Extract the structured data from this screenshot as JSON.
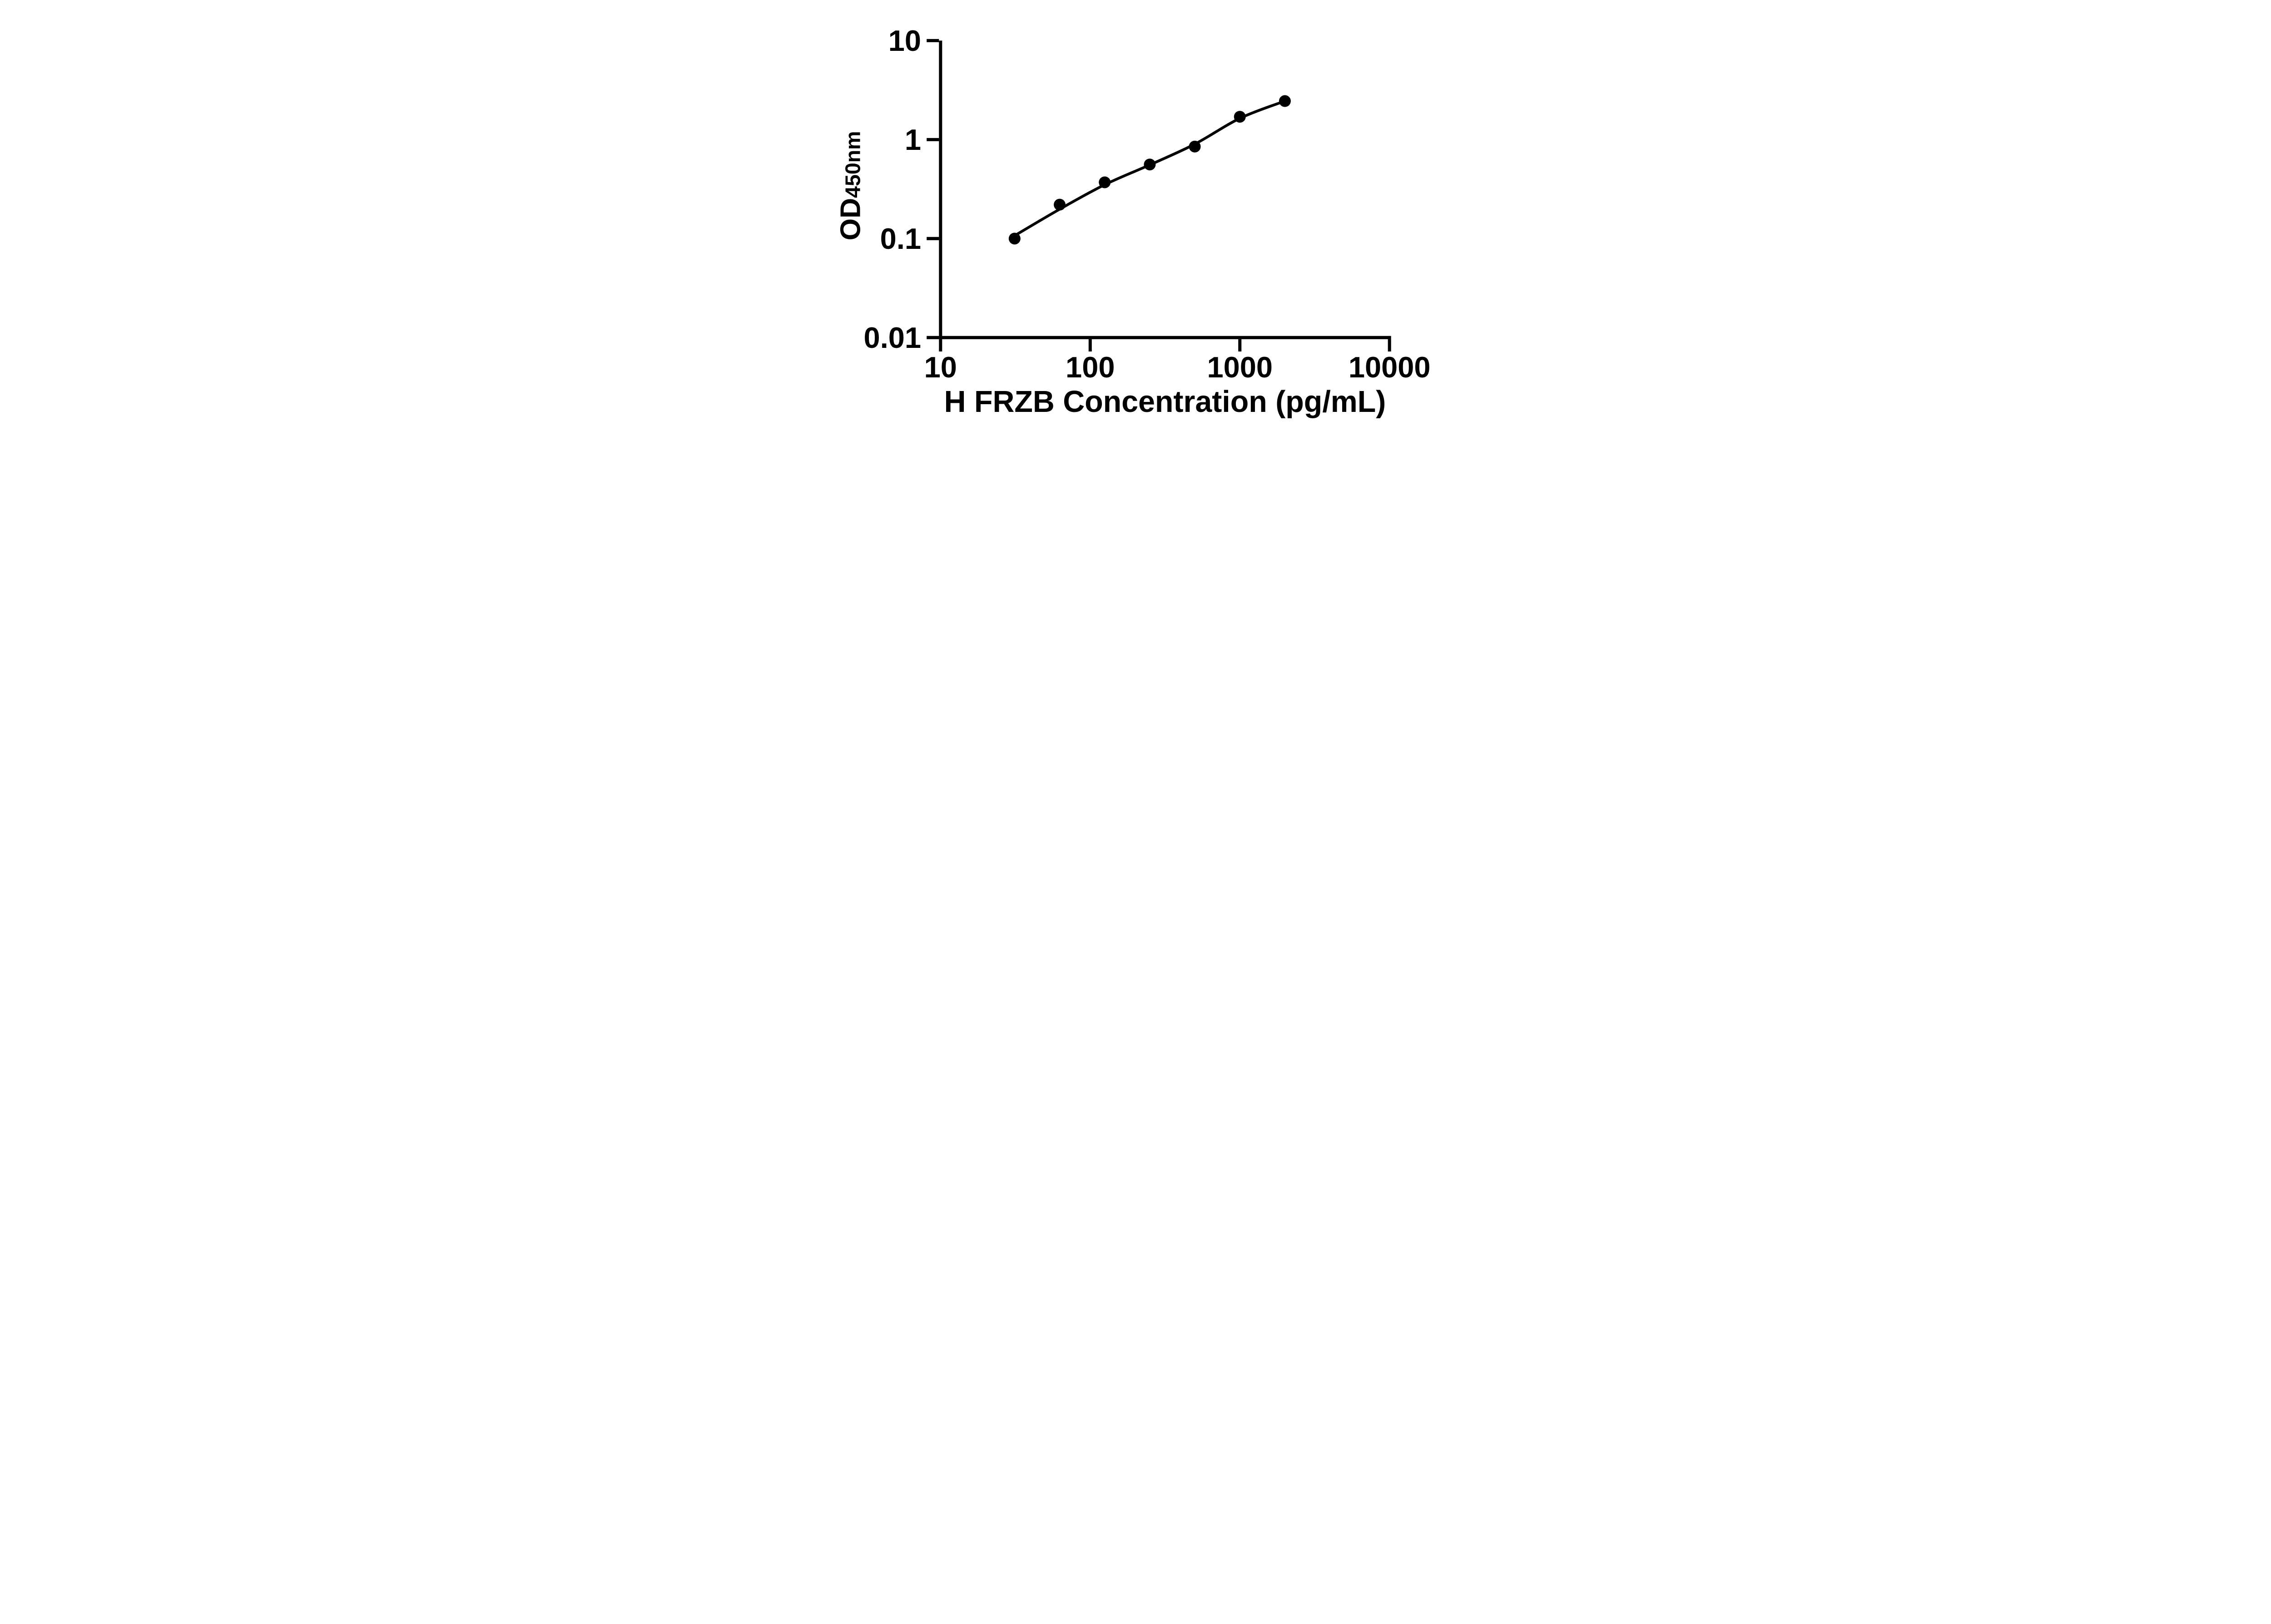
{
  "figure": {
    "background_color": "#ffffff",
    "ink_color": "#000000"
  },
  "chart_data": {
    "type": "scatter",
    "title": "",
    "xlabel": "H FRZB Concentration (pg/mL)",
    "ylabel_main": "OD",
    "ylabel_sub": "450nm",
    "x_scale": "log10",
    "y_scale": "log10",
    "xlim": [
      10,
      10000
    ],
    "ylim": [
      0.01,
      10
    ],
    "grid": false,
    "legend_position": "none",
    "x_ticks": [
      {
        "value": 10,
        "label": "10"
      },
      {
        "value": 100,
        "label": "100"
      },
      {
        "value": 1000,
        "label": "1000"
      },
      {
        "value": 10000,
        "label": "10000"
      }
    ],
    "y_ticks": [
      {
        "value": 10,
        "label": "10"
      },
      {
        "value": 1,
        "label": "1"
      },
      {
        "value": 0.1,
        "label": "0.1"
      },
      {
        "value": 0.01,
        "label": "0.01"
      }
    ],
    "series": [
      {
        "name": "standard-curve-points",
        "marker": "filled-circle",
        "line": "none",
        "x": [
          31.25,
          62.5,
          125,
          250,
          500,
          1000,
          2000
        ],
        "y": [
          0.1,
          0.22,
          0.37,
          0.56,
          0.85,
          1.7,
          2.45
        ]
      },
      {
        "name": "fitted-trend-line",
        "marker": "none",
        "line": "solid",
        "x": [
          31.25,
          62.5,
          125,
          250,
          500,
          1000,
          2000
        ],
        "y": [
          0.107,
          0.198,
          0.35,
          0.555,
          0.9,
          1.64,
          2.45
        ]
      }
    ]
  }
}
